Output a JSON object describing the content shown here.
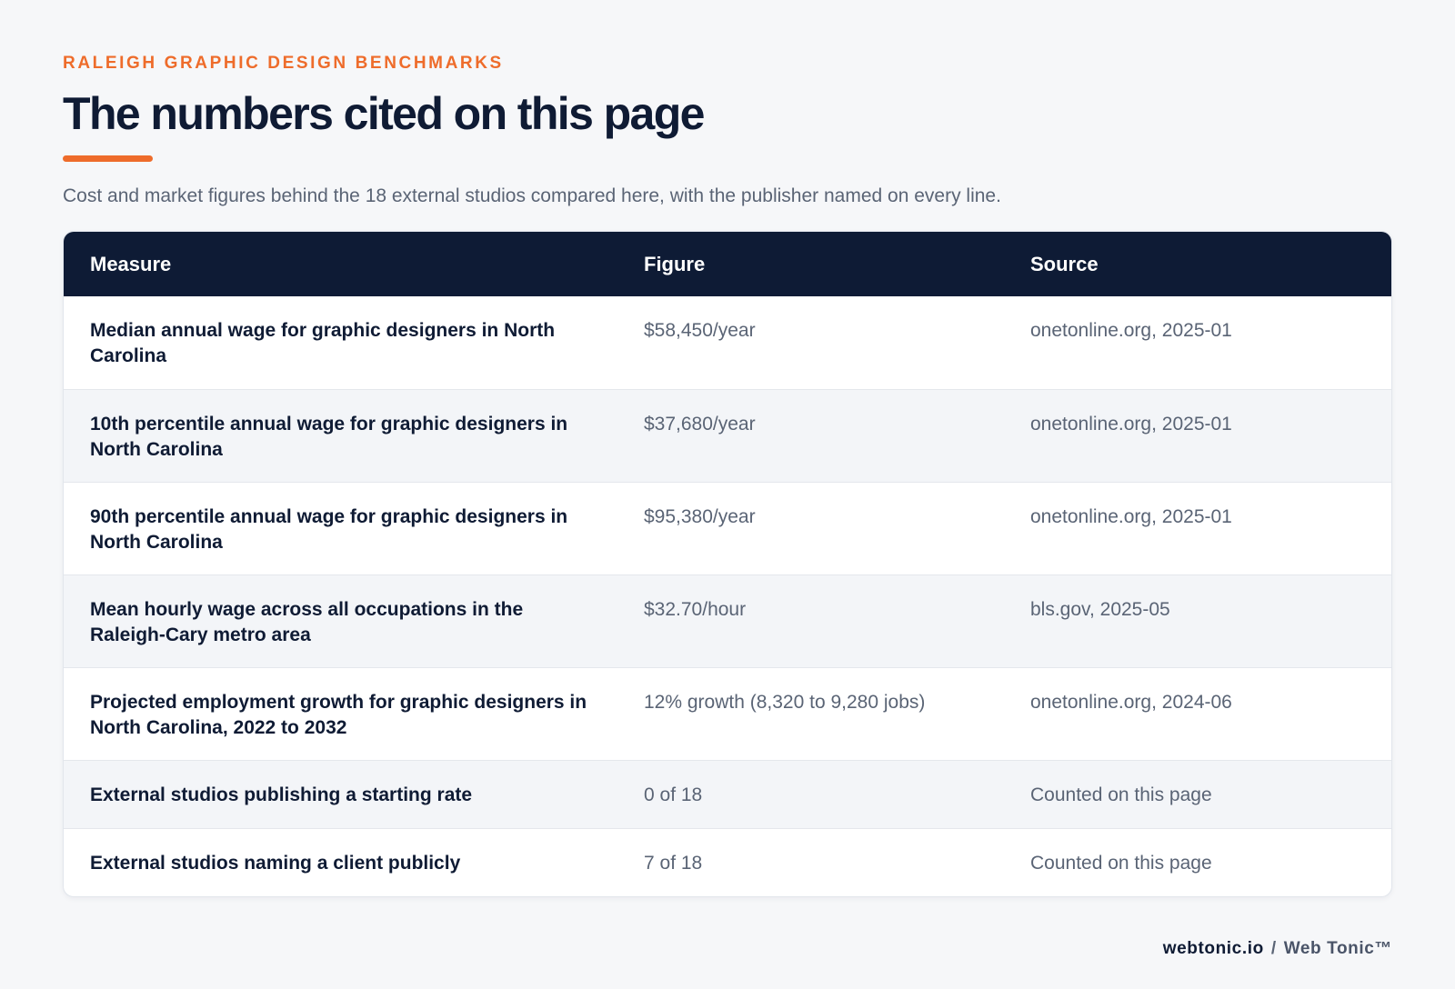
{
  "header": {
    "eyebrow": "RALEIGH GRAPHIC DESIGN BENCHMARKS",
    "title": "The numbers cited on this page",
    "subtitle": "Cost and market figures behind the 18 external studios compared here, with the publisher named on every line."
  },
  "table": {
    "columns": [
      "Measure",
      "Figure",
      "Source"
    ],
    "rows": [
      {
        "measure": "Median annual wage for graphic designers in North Carolina",
        "figure": "$58,450/year",
        "source": "onetonline.org, 2025-01"
      },
      {
        "measure": "10th percentile annual wage for graphic designers in North Carolina",
        "figure": "$37,680/year",
        "source": "onetonline.org, 2025-01"
      },
      {
        "measure": "90th percentile annual wage for graphic designers in North Carolina",
        "figure": "$95,380/year",
        "source": "onetonline.org, 2025-01"
      },
      {
        "measure": "Mean hourly wage across all occupations in the Raleigh-Cary metro area",
        "figure": "$32.70/hour",
        "source": "bls.gov, 2025-05"
      },
      {
        "measure": "Projected employment growth for graphic designers in North Carolina, 2022 to 2032",
        "figure": "12% growth (8,320 to 9,280 jobs)",
        "source": "onetonline.org, 2024-06"
      },
      {
        "measure": "External studios publishing a starting rate",
        "figure": "0 of 18",
        "source": "Counted on this page"
      },
      {
        "measure": "External studios naming a client publicly",
        "figure": "7 of 18",
        "source": "Counted on this page"
      }
    ]
  },
  "footer": {
    "domain": "webtonic.io",
    "separator": "/",
    "brand": "Web Tonic™"
  },
  "colors": {
    "accent": "#ee6c2b",
    "header_bg": "#0e1b35",
    "text_dark": "#0f1b34",
    "text_muted": "#5a6475"
  }
}
